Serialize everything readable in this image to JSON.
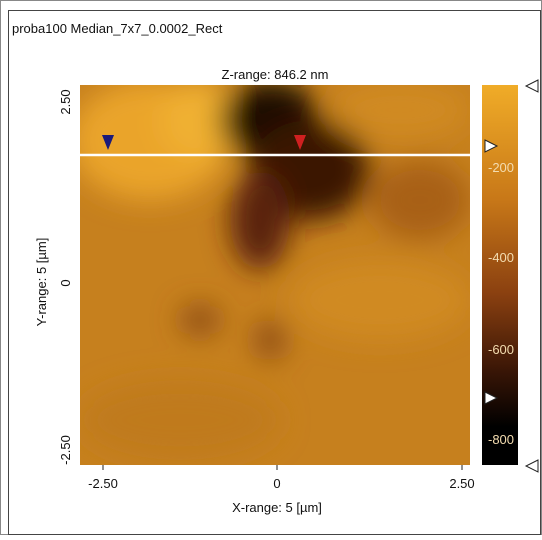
{
  "window": {
    "title": "proba100 Median_7x7_0.0002_Rect"
  },
  "plot": {
    "z_range": "Z-range:  846.2 nm",
    "x_label": "X-range: 5 [µm]",
    "y_label": "Y-range: 5 [µm]",
    "x_ticks": [
      "-2.50",
      "0",
      "2.50"
    ],
    "y_ticks": [
      "2.50",
      "0",
      "-2.50"
    ],
    "colorbar_ticks": [
      "-200",
      "-400",
      "-600",
      "-800"
    ]
  }
}
